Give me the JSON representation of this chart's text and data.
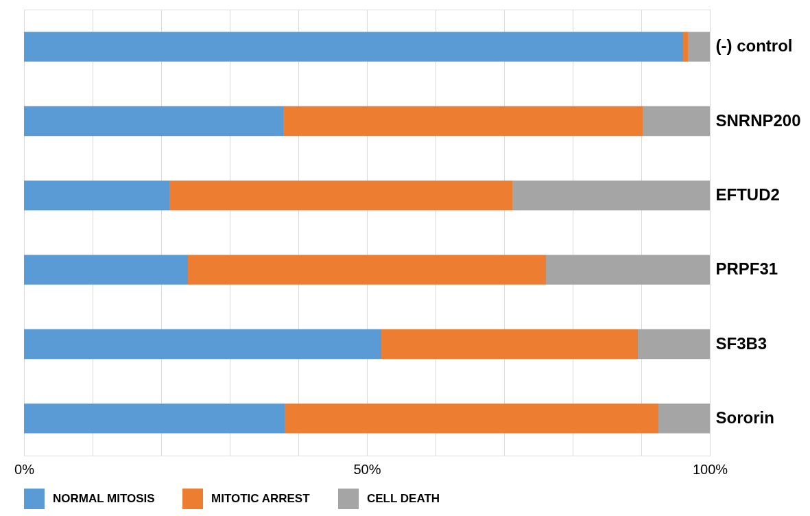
{
  "chart_data": {
    "type": "bar",
    "orientation": "horizontal",
    "stacked": true,
    "categories": [
      "(-) control",
      "SNRNP200",
      "EFTUD2",
      "PRPF31",
      "SF3B3",
      "Sororin"
    ],
    "series": [
      {
        "name": "NORMAL MITOSIS",
        "color": "#5b9bd5",
        "values": [
          96.1,
          37.8,
          21.2,
          23.9,
          52.1,
          38.0
        ]
      },
      {
        "name": "MITOTIC ARREST",
        "color": "#ed7d31",
        "values": [
          0.7,
          52.4,
          50.0,
          52.2,
          37.4,
          54.5
        ]
      },
      {
        "name": "CELL DEATH",
        "color": "#a5a5a5",
        "values": [
          3.2,
          9.8,
          28.8,
          23.9,
          10.5,
          7.5
        ]
      }
    ],
    "xlim": [
      0,
      100
    ],
    "xticks": [
      {
        "value": 0,
        "label": "0%"
      },
      {
        "value": 10,
        "label": null
      },
      {
        "value": 20,
        "label": null
      },
      {
        "value": 30,
        "label": null
      },
      {
        "value": 40,
        "label": null
      },
      {
        "value": 50,
        "label": "50%"
      },
      {
        "value": 60,
        "label": null
      },
      {
        "value": 70,
        "label": null
      },
      {
        "value": 80,
        "label": null
      },
      {
        "value": 90,
        "label": null
      },
      {
        "value": 100,
        "label": "100%"
      }
    ],
    "grid": "x",
    "legend": "bottom"
  }
}
